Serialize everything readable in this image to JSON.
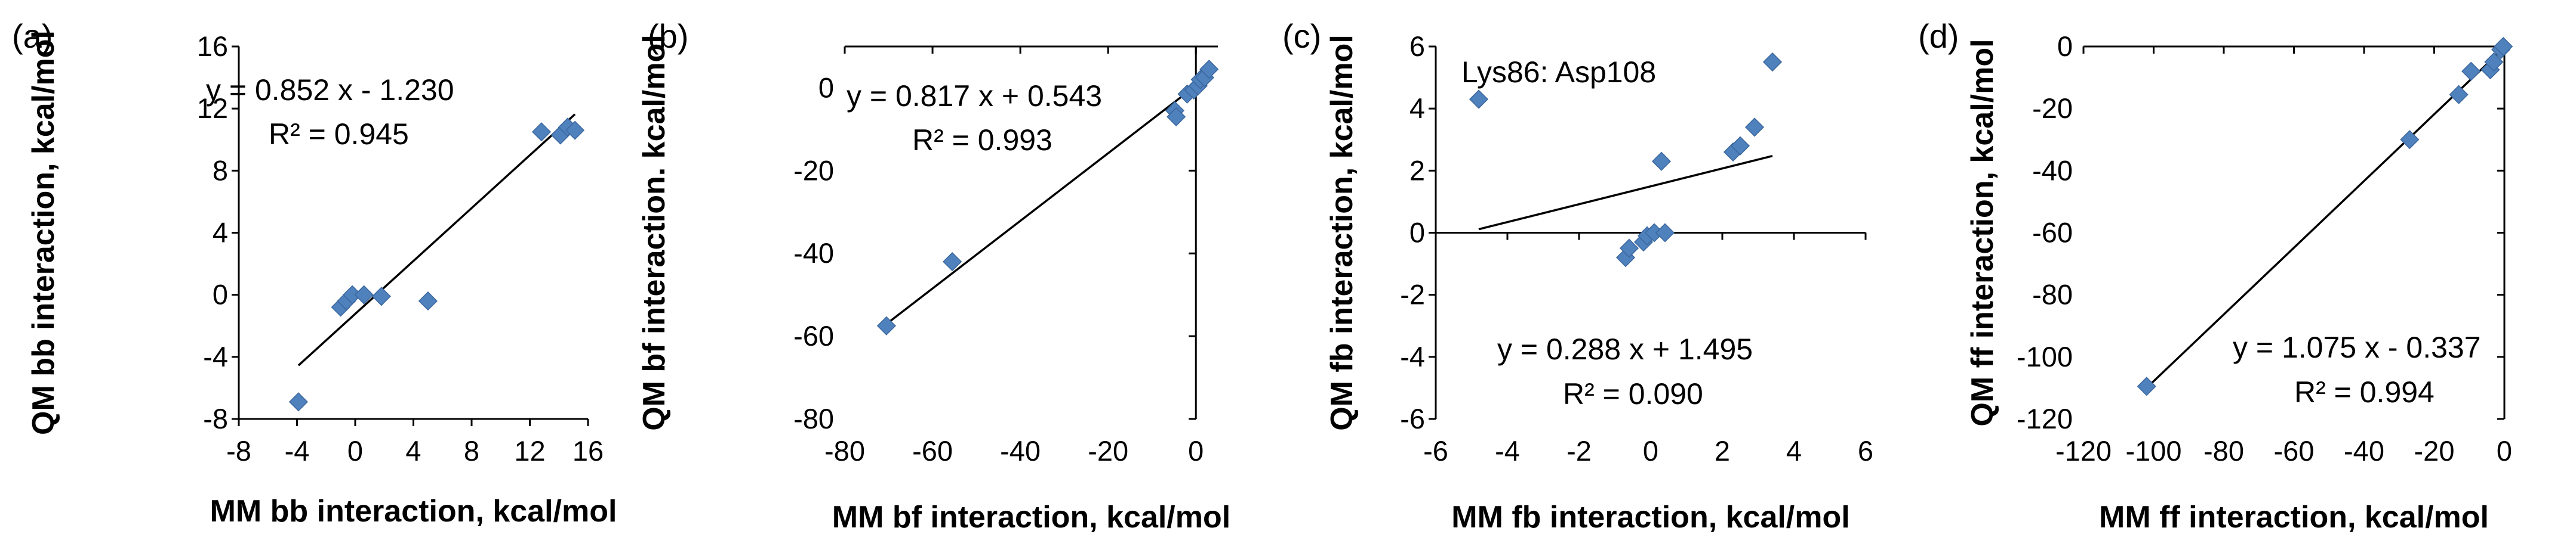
{
  "chart_data": [
    {
      "type": "scatter",
      "panel_label": "(a)",
      "xlabel": "MM bb interaction, kcal/mol",
      "ylabel": "QM bb interaction, kcal/mol",
      "xlim": [
        -8,
        16
      ],
      "ylim": [
        -8,
        16
      ],
      "xticks": [
        -8,
        -4,
        0,
        4,
        8,
        12,
        16
      ],
      "yticks": [
        -8,
        -4,
        0,
        4,
        8,
        12,
        16
      ],
      "xtick_labels": [
        "-8",
        "-4",
        "0",
        "4",
        "8",
        "12",
        "16"
      ],
      "ytick_labels": [
        "-8",
        "-4",
        "0",
        "4",
        "8",
        "12",
        "16"
      ],
      "points": [
        [
          -3.9,
          -6.9
        ],
        [
          -1.0,
          -0.8
        ],
        [
          -0.6,
          -0.4
        ],
        [
          -0.2,
          0.0
        ],
        [
          0.6,
          0.0
        ],
        [
          1.8,
          -0.1
        ],
        [
          5.0,
          -0.4
        ],
        [
          12.8,
          10.5
        ],
        [
          14.1,
          10.3
        ],
        [
          14.6,
          10.8
        ],
        [
          15.1,
          10.6
        ]
      ],
      "fit": {
        "slope": 0.852,
        "intercept": -1.23,
        "x_range": [
          -3.9,
          15.1
        ]
      },
      "equation": "y = 0.852 x - 1.230",
      "r2": "R² = 0.945",
      "annotation": ""
    },
    {
      "type": "scatter",
      "panel_label": "(b)",
      "xlabel": "MM bf interaction, kcal/mol",
      "ylabel": "QM bf interaction. kcal/mol",
      "xlim": [
        -80,
        5
      ],
      "ylim": [
        -80,
        10
      ],
      "xticks": [
        -80,
        -60,
        -40,
        -20,
        0
      ],
      "yticks": [
        -80,
        -60,
        -40,
        -20,
        0
      ],
      "xtick_labels": [
        "-80",
        "-60",
        "-40",
        "-20",
        "0"
      ],
      "ytick_labels": [
        "-80",
        "-60",
        "-40",
        "-20",
        "0"
      ],
      "points": [
        [
          -70.5,
          -57.5
        ],
        [
          -55.5,
          -42.0
        ],
        [
          -4.8,
          -5.5
        ],
        [
          -4.5,
          -7.0
        ],
        [
          -2.0,
          -1.5
        ],
        [
          -0.5,
          -0.5
        ],
        [
          0.5,
          0.5
        ],
        [
          1.0,
          2.0
        ],
        [
          2.0,
          2.5
        ],
        [
          3.0,
          4.5
        ]
      ],
      "fit": {
        "slope": 0.817,
        "intercept": 0.543,
        "x_range": [
          -70.5,
          3.0
        ]
      },
      "equation": "y = 0.817 x + 0.543",
      "r2": "R² = 0.993",
      "annotation": ""
    },
    {
      "type": "scatter",
      "panel_label": "(c)",
      "xlabel": "MM fb interaction, kcal/mol",
      "ylabel": "QM fb interaction, kcal/mol",
      "xlim": [
        -6,
        6
      ],
      "ylim": [
        -6,
        6
      ],
      "xticks": [
        -6,
        -4,
        -2,
        0,
        2,
        4,
        6
      ],
      "yticks": [
        -6,
        -4,
        -2,
        0,
        2,
        4,
        6
      ],
      "xtick_labels": [
        "-6",
        "-4",
        "-2",
        "0",
        "2",
        "4",
        "6"
      ],
      "ytick_labels": [
        "-6",
        "-4",
        "-2",
        "0",
        "2",
        "4",
        "6"
      ],
      "points": [
        [
          -4.8,
          4.3
        ],
        [
          -0.7,
          -0.8
        ],
        [
          -0.6,
          -0.5
        ],
        [
          -0.2,
          -0.3
        ],
        [
          -0.1,
          -0.1
        ],
        [
          0.1,
          0.0
        ],
        [
          0.4,
          0.0
        ],
        [
          0.3,
          2.3
        ],
        [
          2.3,
          2.6
        ],
        [
          2.5,
          2.8
        ],
        [
          2.9,
          3.4
        ],
        [
          3.4,
          5.5
        ]
      ],
      "fit": {
        "slope": 0.288,
        "intercept": 1.495,
        "x_range": [
          -4.8,
          3.4
        ]
      },
      "equation": "y = 0.288 x + 1.495",
      "r2": "R² = 0.090",
      "annotation": "Lys86: Asp108"
    },
    {
      "type": "scatter",
      "panel_label": "(d)",
      "xlabel": "MM ff interaction, kcal/mol",
      "ylabel": "QM ff interaction, kcal/mol",
      "xlim": [
        -120,
        0
      ],
      "ylim": [
        -120,
        0
      ],
      "xticks": [
        -120,
        -100,
        -80,
        -60,
        -40,
        -20,
        0
      ],
      "yticks": [
        -120,
        -100,
        -80,
        -60,
        -40,
        -20,
        0
      ],
      "xtick_labels": [
        "-120",
        "-100",
        "-80",
        "-60",
        "-40",
        "-20",
        "0"
      ],
      "ytick_labels": [
        "-120",
        "-100",
        "-80",
        "-60",
        "-40",
        "-20",
        "0"
      ],
      "points": [
        [
          -102.0,
          -109.5
        ],
        [
          -27.0,
          -30.0
        ],
        [
          -13.0,
          -15.5
        ],
        [
          -9.5,
          -8.0
        ],
        [
          -4.0,
          -7.5
        ],
        [
          -3.0,
          -5.0
        ],
        [
          -1.0,
          -1.0
        ],
        [
          -0.3,
          0.0
        ]
      ],
      "fit": {
        "slope": 1.075,
        "intercept": -0.337,
        "x_range": [
          -102.0,
          0.0
        ]
      },
      "equation": "y = 1.075 x - 0.337",
      "r2": "R² = 0.994",
      "annotation": ""
    }
  ],
  "colors": {
    "marker": "#4F81BD",
    "marker_edge": "#3B679E",
    "line": "#000000",
    "axis": "#000000"
  }
}
